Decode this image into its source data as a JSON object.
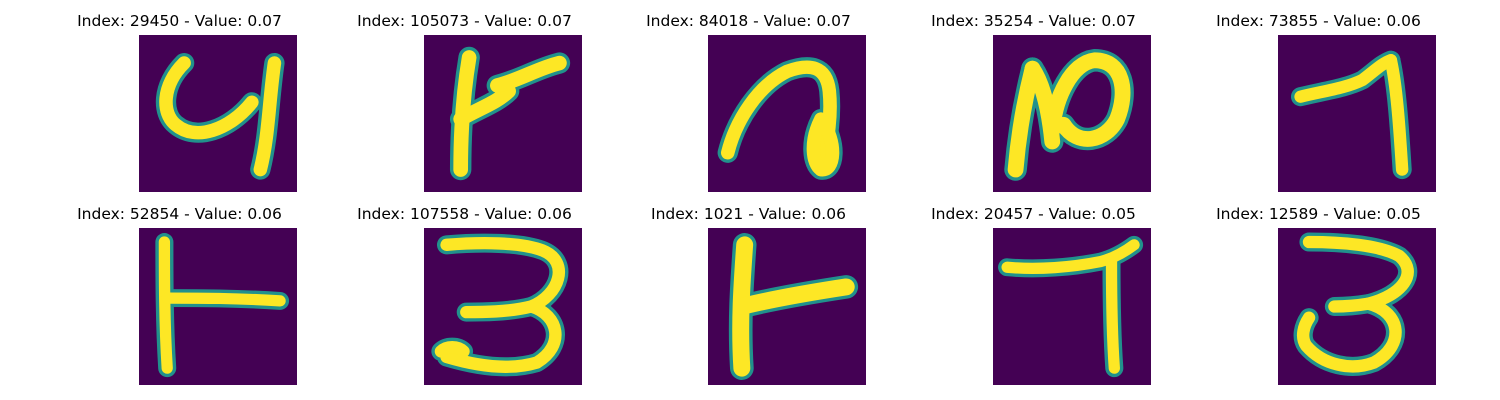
{
  "colors": {
    "background": "#440154",
    "stroke_core": "#fde725",
    "stroke_edge": "#21918c"
  },
  "panels": [
    {
      "title": "Index: 29450 - Value: 0.07",
      "glyph": "curly-4-shape"
    },
    {
      "title": "Index: 105073 - Value: 0.07",
      "glyph": "k-like-shape"
    },
    {
      "title": "Index: 84018 - Value: 0.07",
      "glyph": "curl-with-loop-shape"
    },
    {
      "title": "Index: 35254 - Value: 0.07",
      "glyph": "loop-shape"
    },
    {
      "title": "Index: 73855 - Value: 0.06",
      "glyph": "seven-like-shape"
    },
    {
      "title": "Index: 52854 - Value: 0.06",
      "glyph": "t-like-shape"
    },
    {
      "title": "Index: 107558 - Value: 0.06",
      "glyph": "three-like-shape"
    },
    {
      "title": "Index: 1021 - Value: 0.06",
      "glyph": "t-like-shape"
    },
    {
      "title": "Index: 20457 - Value: 0.05",
      "glyph": "seven-like-shape"
    },
    {
      "title": "Index: 12589 - Value: 0.05",
      "glyph": "three-like-shape"
    }
  ]
}
